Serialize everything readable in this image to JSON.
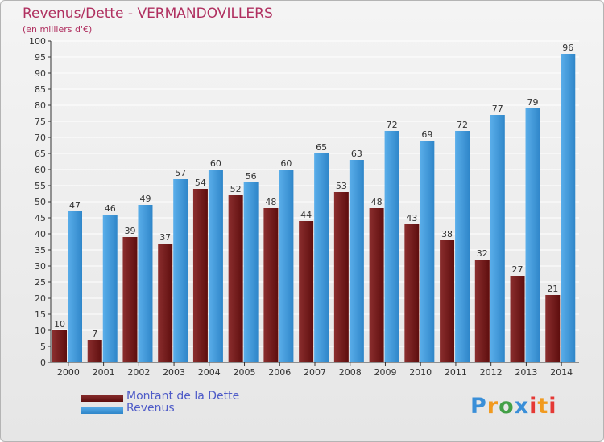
{
  "title": "Revenus/Dette - VERMANDOVILLERS",
  "subtitle": "(en milliers d'€)",
  "colors": {
    "dette_top": "#8b2e2e",
    "dette_bottom": "#5e0e0e",
    "revenus_top": "#5aaeea",
    "revenus_bottom": "#2f86c9",
    "grid": "#ffffff",
    "axis": "#333333"
  },
  "legend": {
    "dette": "Montant de la Dette",
    "revenus": "Revenus"
  },
  "logo": {
    "p": "P",
    "r": "r",
    "o": "o",
    "x": "x",
    "i": "i",
    "t": "t",
    "i2": "i"
  },
  "chart_data": {
    "type": "bar",
    "title": "Revenus/Dette - VERMANDOVILLERS",
    "subtitle": "(en milliers d'€)",
    "xlabel": "",
    "ylabel": "",
    "ylim": [
      0,
      100
    ],
    "ytick_step": 5,
    "grid": true,
    "legend_position": "bottom-left",
    "categories": [
      "2000",
      "2001",
      "2002",
      "2003",
      "2004",
      "2005",
      "2006",
      "2007",
      "2008",
      "2009",
      "2010",
      "2011",
      "2012",
      "2013",
      "2014"
    ],
    "series": [
      {
        "name": "Montant de la Dette",
        "values": [
          10,
          7,
          39,
          37,
          54,
          52,
          48,
          44,
          53,
          48,
          43,
          38,
          32,
          27,
          21
        ]
      },
      {
        "name": "Revenus",
        "values": [
          47,
          46,
          49,
          57,
          60,
          56,
          60,
          65,
          63,
          72,
          69,
          72,
          77,
          79,
          96
        ]
      }
    ]
  }
}
